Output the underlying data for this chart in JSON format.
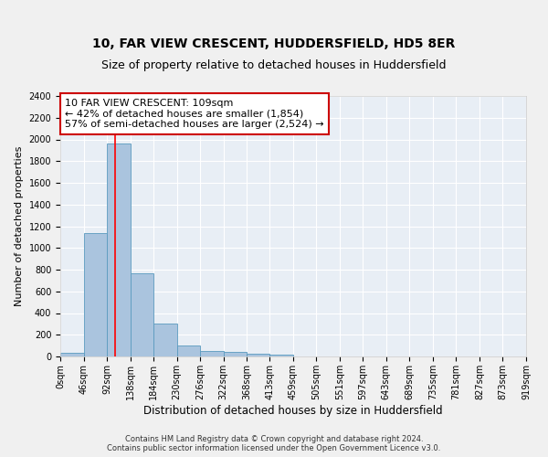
{
  "title": "10, FAR VIEW CRESCENT, HUDDERSFIELD, HD5 8ER",
  "subtitle": "Size of property relative to detached houses in Huddersfield",
  "xlabel": "Distribution of detached houses by size in Huddersfield",
  "ylabel": "Number of detached properties",
  "footnote1": "Contains HM Land Registry data © Crown copyright and database right 2024.",
  "footnote2": "Contains public sector information licensed under the Open Government Licence v3.0.",
  "annotation_line1": "10 FAR VIEW CRESCENT: 109sqm",
  "annotation_line2": "← 42% of detached houses are smaller (1,854)",
  "annotation_line3": "57% of semi-detached houses are larger (2,524) →",
  "bin_edges": [
    0,
    46,
    92,
    138,
    184,
    230,
    276,
    322,
    368,
    413,
    459,
    505,
    551,
    597,
    643,
    689,
    735,
    781,
    827,
    873,
    919
  ],
  "bin_labels": [
    "0sqm",
    "46sqm",
    "92sqm",
    "138sqm",
    "184sqm",
    "230sqm",
    "276sqm",
    "322sqm",
    "368sqm",
    "413sqm",
    "459sqm",
    "505sqm",
    "551sqm",
    "597sqm",
    "643sqm",
    "689sqm",
    "735sqm",
    "781sqm",
    "827sqm",
    "873sqm",
    "919sqm"
  ],
  "bar_heights": [
    35,
    1135,
    1960,
    770,
    300,
    100,
    48,
    40,
    25,
    15,
    0,
    0,
    0,
    0,
    0,
    0,
    0,
    0,
    0,
    0
  ],
  "bar_color": "#aac4de",
  "bar_edge_color": "#5a9abf",
  "red_line_x": 109,
  "ylim": [
    0,
    2400
  ],
  "yticks": [
    0,
    200,
    400,
    600,
    800,
    1000,
    1200,
    1400,
    1600,
    1800,
    2000,
    2200,
    2400
  ],
  "background_color": "#e8eef5",
  "grid_color": "#ffffff",
  "annotation_box_facecolor": "#ffffff",
  "annotation_box_edgecolor": "#cc0000",
  "fig_facecolor": "#f0f0f0",
  "title_fontsize": 10,
  "subtitle_fontsize": 9,
  "xlabel_fontsize": 8.5,
  "ylabel_fontsize": 8,
  "tick_fontsize": 7,
  "annotation_fontsize": 8,
  "footnote_fontsize": 6
}
